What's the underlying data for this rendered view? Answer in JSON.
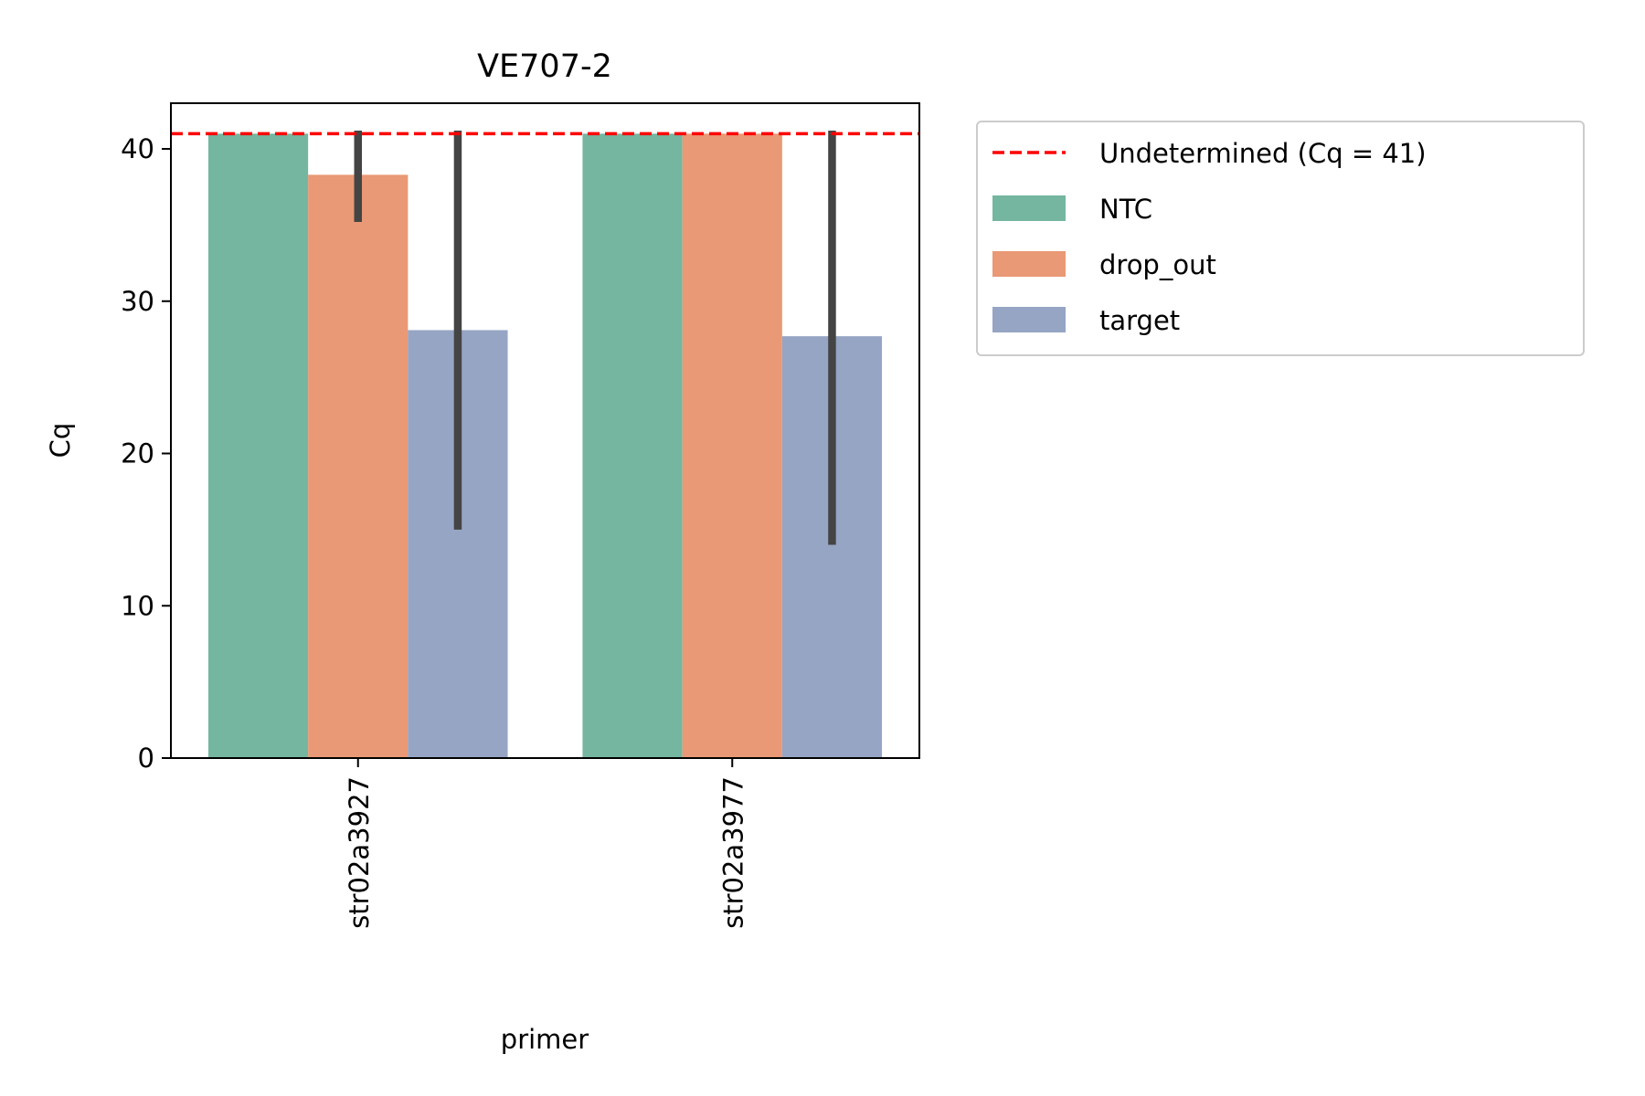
{
  "chart_data": {
    "type": "bar",
    "title": "VE707-2",
    "xlabel": "primer",
    "ylabel": "Cq",
    "ylim": [
      0,
      43
    ],
    "yticks": [
      0,
      10,
      20,
      30,
      40
    ],
    "categories": [
      "str02a3927",
      "str02a3977"
    ],
    "series": [
      {
        "name": "NTC",
        "color": "#74b6a0",
        "values": [
          41,
          41
        ],
        "error": [
          null,
          null
        ]
      },
      {
        "name": "drop_out",
        "color": "#e99975",
        "values": [
          38.3,
          41
        ],
        "error": [
          [
            35.2,
            41.2
          ],
          null
        ]
      },
      {
        "name": "target",
        "color": "#96a5c4",
        "values": [
          28.1,
          27.7
        ],
        "error": [
          [
            15.0,
            41.2
          ],
          [
            14.0,
            41.2
          ]
        ]
      }
    ],
    "reference_line": {
      "name": "Undetermined (Cq = 41)",
      "value": 41,
      "color": "#ff0000",
      "style": "dashed"
    },
    "errorbar_color": "#444444",
    "grid": false,
    "legend_placement": "outside upper right"
  }
}
